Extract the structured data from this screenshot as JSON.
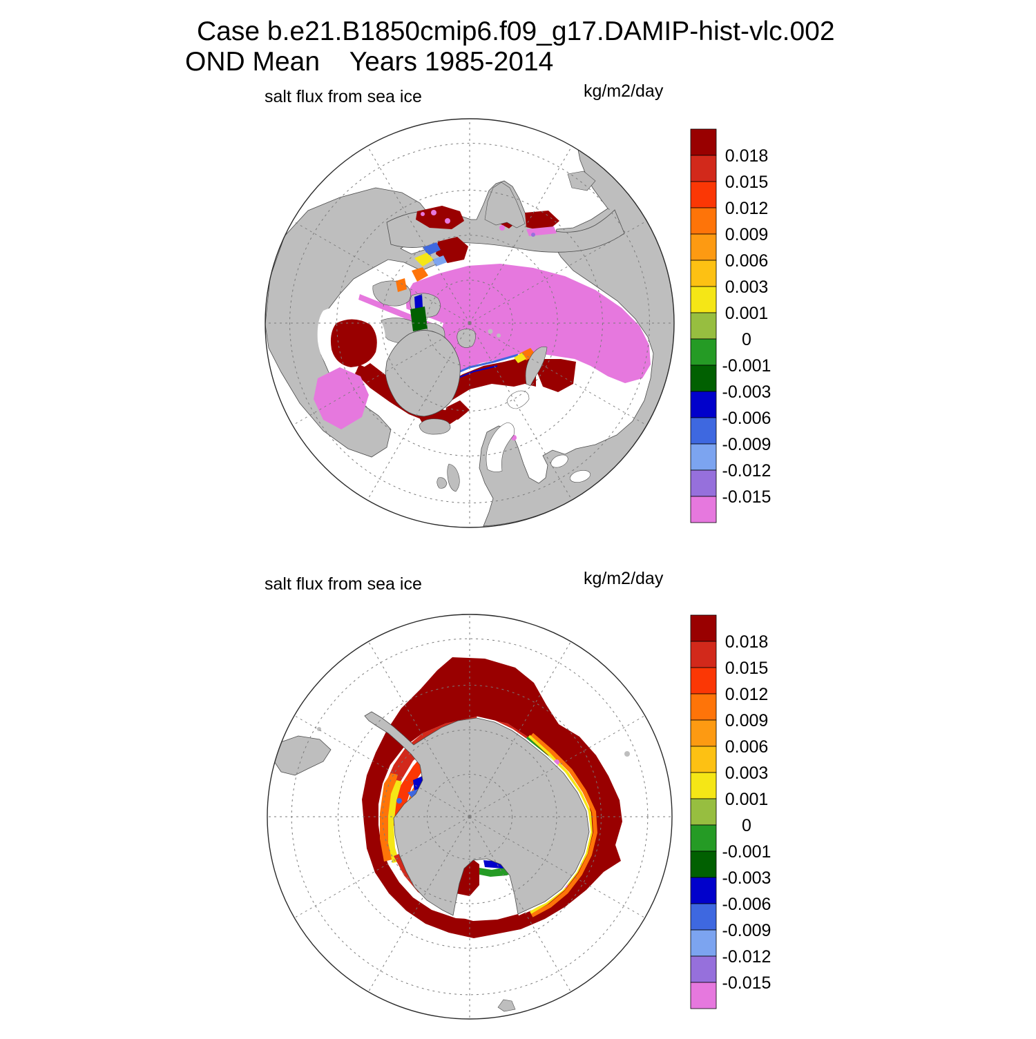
{
  "header": {
    "title_line1": "Case b.e21.B1850cmip6.f09_g17.DAMIP-hist-vlc.002",
    "title_line2": "OND Mean    Years 1985-2014"
  },
  "panels": [
    {
      "id": "north",
      "var_label": "salt flux from sea ice",
      "units_label": "kg/m2/day"
    },
    {
      "id": "south",
      "var_label": "salt flux from sea ice",
      "units_label": "kg/m2/day"
    }
  ],
  "colorbar": {
    "tick_labels": [
      "0.018",
      "0.015",
      "0.012",
      "0.009",
      "0.006",
      "0.003",
      "0.001",
      "0",
      "-0.001",
      "-0.003",
      "-0.006",
      "-0.009",
      "-0.012",
      "-0.015"
    ],
    "palette_top_to_bottom": [
      "#990000",
      "#D2291B",
      "#FB3705",
      "#FE7409",
      "#FD9A12",
      "#FDC113",
      "#F5E616",
      "#97BE40",
      "#259B25",
      "#016001",
      "#0101CB",
      "#3E68E0",
      "#7CA4F0",
      "#9670DC",
      "#E678DE"
    ]
  },
  "colors": {
    "land": "#BEBEBE",
    "ocean": "#FFFFFF",
    "coastline": "#4A4A4A",
    "graticule": "#7A7A7A",
    "map_edge": "#2A2A2A",
    "ice_negative_pink": "#E678DE",
    "flux_positive_dark_red": "#990000"
  },
  "chart_data": [
    {
      "type": "heatmap",
      "subtype": "polar-stereographic-contour-map",
      "hemisphere": "north",
      "title": "salt flux from sea ice",
      "units": "kg/m2/day",
      "levels": [
        -0.015,
        -0.012,
        -0.009,
        -0.006,
        -0.003,
        -0.001,
        0,
        0.001,
        0.003,
        0.006,
        0.009,
        0.012,
        0.015,
        0.018
      ],
      "palette": [
        "#990000",
        "#D2291B",
        "#FB3705",
        "#FE7409",
        "#FD9A12",
        "#FDC113",
        "#F5E616",
        "#97BE40",
        "#259B25",
        "#016001",
        "#0101CB",
        "#3E68E0",
        "#7CA4F0",
        "#9670DC",
        "#E678DE"
      ],
      "legend_position": "right",
      "grid": "dashed polar graticule, meridians every 30 deg, latitude circles",
      "regions": [
        {
          "name": "central Arctic Ocean ice pack",
          "value": "< -0.015",
          "color": "#E678DE"
        },
        {
          "name": "Baffin Bay / Canadian Archipelago channels",
          "value": "< -0.015",
          "color": "#E678DE"
        },
        {
          "name": "Sea of Okhotsk / Bering Sea margins",
          "value": "> 0.018",
          "color": "#990000"
        },
        {
          "name": "Hudson Bay",
          "value": "> 0.018",
          "color": "#990000"
        },
        {
          "name": "Labrador Sea / Davis Strait band",
          "value": "> 0.018",
          "color": "#990000"
        },
        {
          "name": "Greenland-Barents Sea ice-edge band",
          "value": "> 0.018",
          "color": "#990000"
        },
        {
          "name": "thin ice-edge transition fringes",
          "value": "-0.012 to 0.015 gradient",
          "color": "mixed"
        }
      ]
    },
    {
      "type": "heatmap",
      "subtype": "polar-stereographic-contour-map",
      "hemisphere": "south",
      "title": "salt flux from sea ice",
      "units": "kg/m2/day",
      "levels": [
        -0.015,
        -0.012,
        -0.009,
        -0.006,
        -0.003,
        -0.001,
        0,
        0.001,
        0.003,
        0.006,
        0.009,
        0.012,
        0.015,
        0.018
      ],
      "palette": [
        "#990000",
        "#D2291B",
        "#FB3705",
        "#FE7409",
        "#FD9A12",
        "#FDC113",
        "#F5E616",
        "#97BE40",
        "#259B25",
        "#016001",
        "#0101CB",
        "#3E68E0",
        "#7CA4F0",
        "#9670DC",
        "#E678DE"
      ],
      "legend_position": "right",
      "grid": "dashed polar graticule, meridians every 30 deg, latitude circles",
      "regions": [
        {
          "name": "circumpolar seasonal sea-ice zone ring",
          "value": "> 0.018",
          "color": "#990000"
        },
        {
          "name": "Weddell / Ross inner gradient",
          "value": "0.001 to 0.018 gradient",
          "color": "red-orange-yellow"
        },
        {
          "name": "coastal fringe around East Antarctica",
          "value": "-0.015 to 0.015 gradient",
          "color": "green-blue-purple-pink"
        },
        {
          "name": "Ross Sea coastal polynya tongue",
          "value": "> 0.018",
          "color": "#990000"
        },
        {
          "name": "Antarctic continent",
          "value": "land",
          "color": "#BEBEBE"
        }
      ]
    }
  ]
}
